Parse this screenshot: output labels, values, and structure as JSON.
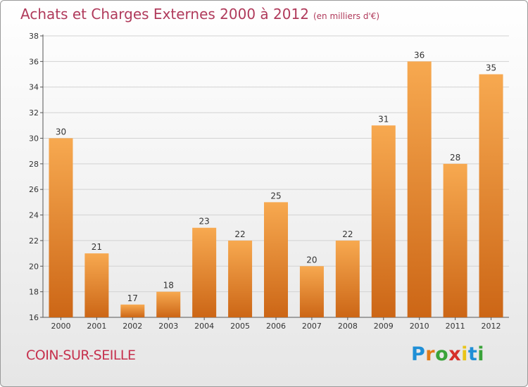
{
  "title": "Achats et Charges Externes 2000 à 2012",
  "subtitle": "(en milliers d'€)",
  "place": "COIN-SUR-SEILLE",
  "logo": {
    "text": "Proxiti",
    "colors": [
      "#1f8fd6",
      "#e27b1a",
      "#3aa33a",
      "#d6302a",
      "#e9c51a",
      "#1f8fd6",
      "#3aa33a"
    ]
  },
  "colors": {
    "bar_top": "#f7a950",
    "bar_bottom": "#cc6616",
    "title": "#b03a5b",
    "place": "#c6304d"
  },
  "chart_data": {
    "type": "bar",
    "categories": [
      "2000",
      "2001",
      "2002",
      "2003",
      "2004",
      "2005",
      "2006",
      "2007",
      "2008",
      "2009",
      "2010",
      "2011",
      "2012"
    ],
    "values": [
      30,
      21,
      17,
      18,
      23,
      22,
      25,
      20,
      22,
      31,
      36,
      28,
      35
    ],
    "ylim": [
      16,
      38
    ],
    "yticks": [
      16,
      18,
      20,
      22,
      24,
      26,
      28,
      30,
      32,
      34,
      36,
      38
    ],
    "grid": true,
    "title": "Achats et Charges Externes 2000 à 2012",
    "ylabel": "",
    "xlabel": ""
  }
}
